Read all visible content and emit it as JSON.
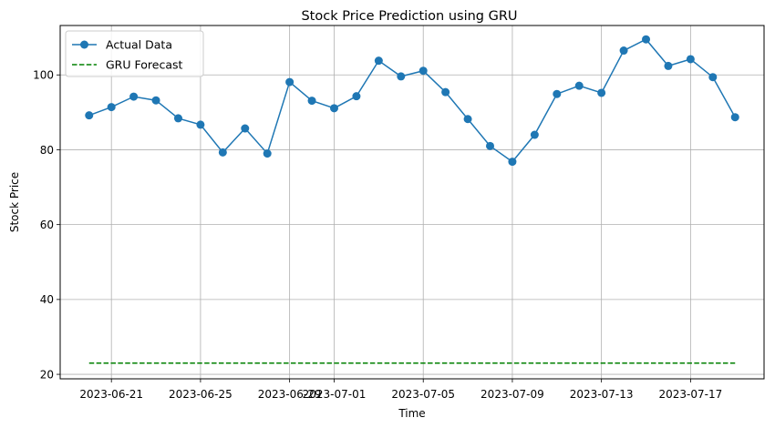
{
  "chart_data": {
    "type": "line",
    "title": "Stock Price Prediction using GRU",
    "xlabel": "Time",
    "ylabel": "Stock Price",
    "x": [
      "2023-06-20",
      "2023-06-21",
      "2023-06-22",
      "2023-06-23",
      "2023-06-24",
      "2023-06-25",
      "2023-06-26",
      "2023-06-27",
      "2023-06-28",
      "2023-06-29",
      "2023-06-30",
      "2023-07-01",
      "2023-07-02",
      "2023-07-03",
      "2023-07-04",
      "2023-07-05",
      "2023-07-06",
      "2023-07-07",
      "2023-07-08",
      "2023-07-09",
      "2023-07-10",
      "2023-07-11",
      "2023-07-12",
      "2023-07-13",
      "2023-07-14",
      "2023-07-15",
      "2023-07-16",
      "2023-07-17",
      "2023-07-18",
      "2023-07-19"
    ],
    "xticks": [
      "2023-06-21",
      "2023-06-25",
      "2023-06-29",
      "2023-07-01",
      "2023-07-05",
      "2023-07-09",
      "2023-07-13",
      "2023-07-17"
    ],
    "xlim": [
      "2023-06-18T16:48",
      "2023-07-20T07:12"
    ],
    "ylim": [
      18.8,
      113.2
    ],
    "yticks": [
      20,
      40,
      60,
      80,
      100
    ],
    "grid": true,
    "legend_position": "top-left",
    "series": [
      {
        "name": "Actual Data",
        "color": "#1f77b4",
        "style": "solid-with-circle-markers",
        "values": [
          89.2,
          91.4,
          94.2,
          93.2,
          88.4,
          86.7,
          79.3,
          85.7,
          79.0,
          98.1,
          93.1,
          91.1,
          94.3,
          103.8,
          99.6,
          101.1,
          95.4,
          88.2,
          81.0,
          76.8,
          84.0,
          94.9,
          97.1,
          95.2,
          106.5,
          109.5,
          102.4,
          104.2,
          99.4,
          88.7
        ]
      },
      {
        "name": "GRU Forecast",
        "color": "#008000",
        "style": "dashed",
        "values": [
          23.0,
          23.0,
          23.0,
          23.0,
          23.0,
          23.0,
          23.0,
          23.0,
          23.0,
          23.0,
          23.0,
          23.0,
          23.0,
          23.0,
          23.0,
          23.0,
          23.0,
          23.0,
          23.0,
          23.0,
          23.0,
          23.0,
          23.0,
          23.0,
          23.0,
          23.0,
          23.0,
          23.0,
          23.0,
          23.0
        ]
      }
    ]
  }
}
